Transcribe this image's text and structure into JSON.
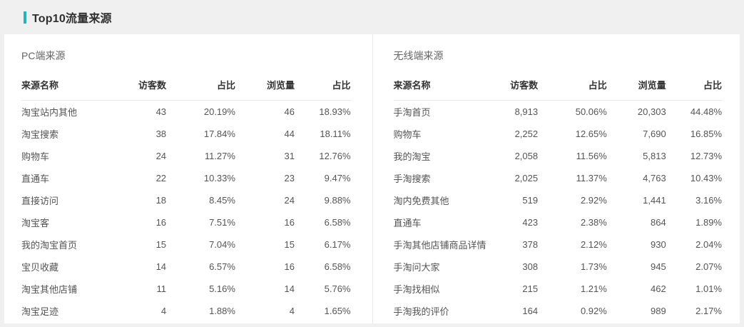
{
  "page": {
    "title": "Top10流量来源"
  },
  "colors": {
    "accent": "#26b3ba",
    "page_background": "#f0f0f0",
    "card_background": "#ffffff",
    "header_text": "#333333",
    "cell_text": "#555555",
    "divider": "#e8e8e8"
  },
  "panels": [
    {
      "section_title": "PC端来源",
      "columns": [
        "来源名称",
        "访客数",
        "占比",
        "浏览量",
        "占比"
      ],
      "rows": [
        [
          "淘宝站内其他",
          "43",
          "20.19%",
          "46",
          "18.93%"
        ],
        [
          "淘宝搜索",
          "38",
          "17.84%",
          "44",
          "18.11%"
        ],
        [
          "购物车",
          "24",
          "11.27%",
          "31",
          "12.76%"
        ],
        [
          "直通车",
          "22",
          "10.33%",
          "23",
          "9.47%"
        ],
        [
          "直接访问",
          "18",
          "8.45%",
          "24",
          "9.88%"
        ],
        [
          "淘宝客",
          "16",
          "7.51%",
          "16",
          "6.58%"
        ],
        [
          "我的淘宝首页",
          "15",
          "7.04%",
          "15",
          "6.17%"
        ],
        [
          "宝贝收藏",
          "14",
          "6.57%",
          "16",
          "6.58%"
        ],
        [
          "淘宝其他店铺",
          "11",
          "5.16%",
          "14",
          "5.76%"
        ],
        [
          "淘宝足迹",
          "4",
          "1.88%",
          "4",
          "1.65%"
        ]
      ]
    },
    {
      "section_title": "无线端来源",
      "columns": [
        "来源名称",
        "访客数",
        "占比",
        "浏览量",
        "占比"
      ],
      "rows": [
        [
          "手淘首页",
          "8,913",
          "50.06%",
          "20,303",
          "44.48%"
        ],
        [
          "购物车",
          "2,252",
          "12.65%",
          "7,690",
          "16.85%"
        ],
        [
          "我的淘宝",
          "2,058",
          "11.56%",
          "5,813",
          "12.73%"
        ],
        [
          "手淘搜索",
          "2,025",
          "11.37%",
          "4,763",
          "10.43%"
        ],
        [
          "淘内免费其他",
          "519",
          "2.92%",
          "1,441",
          "3.16%"
        ],
        [
          "直通车",
          "423",
          "2.38%",
          "864",
          "1.89%"
        ],
        [
          "手淘其他店铺商品详情",
          "378",
          "2.12%",
          "930",
          "2.04%"
        ],
        [
          "手淘问大家",
          "308",
          "1.73%",
          "945",
          "2.07%"
        ],
        [
          "手淘找相似",
          "215",
          "1.21%",
          "462",
          "1.01%"
        ],
        [
          "手淘我的评价",
          "164",
          "0.92%",
          "989",
          "2.17%"
        ]
      ]
    }
  ]
}
